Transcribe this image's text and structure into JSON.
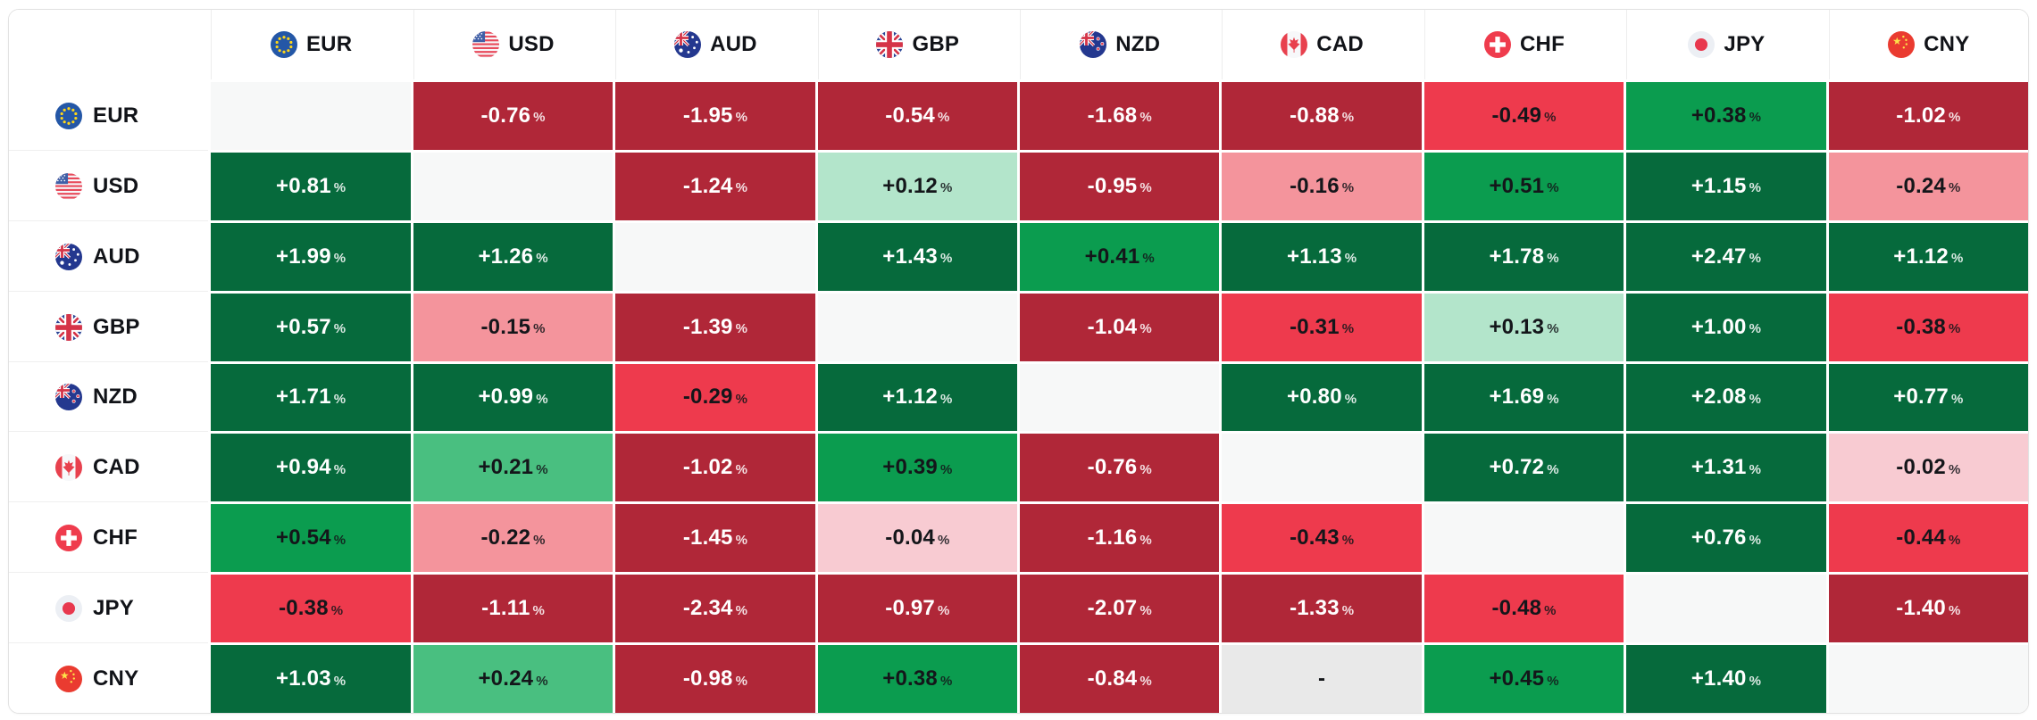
{
  "widget_title": "currency-strength-matrix",
  "table": {
    "unit": "%",
    "columns": [
      "EUR",
      "USD",
      "AUD",
      "GBP",
      "NZD",
      "CAD",
      "CHF",
      "JPY",
      "CNY"
    ],
    "rows": [
      {
        "currency": "EUR",
        "flag_icon": "eur-flag-icon",
        "values": [
          null,
          "-0.76",
          "-1.95",
          "-0.54",
          "-1.68",
          "-0.88",
          "-0.49",
          "+0.38",
          "-1.02"
        ]
      },
      {
        "currency": "USD",
        "flag_icon": "usd-flag-icon",
        "values": [
          "+0.81",
          null,
          "-1.24",
          "+0.12",
          "-0.95",
          "-0.16",
          "+0.51",
          "+1.15",
          "-0.24"
        ]
      },
      {
        "currency": "AUD",
        "flag_icon": "aud-flag-icon",
        "values": [
          "+1.99",
          "+1.26",
          null,
          "+1.43",
          "+0.41",
          "+1.13",
          "+1.78",
          "+2.47",
          "+1.12"
        ]
      },
      {
        "currency": "GBP",
        "flag_icon": "gbp-flag-icon",
        "values": [
          "+0.57",
          "-0.15",
          "-1.39",
          null,
          "-1.04",
          "-0.31",
          "+0.13",
          "+1.00",
          "-0.38"
        ]
      },
      {
        "currency": "NZD",
        "flag_icon": "nzd-flag-icon",
        "values": [
          "+1.71",
          "+0.99",
          "-0.29",
          "+1.12",
          null,
          "+0.80",
          "+1.69",
          "+2.08",
          "+0.77"
        ]
      },
      {
        "currency": "CAD",
        "flag_icon": "cad-flag-icon",
        "values": [
          "+0.94",
          "+0.21",
          "-1.02",
          "+0.39",
          "-0.76",
          null,
          "+0.72",
          "+1.31",
          "-0.02"
        ]
      },
      {
        "currency": "CHF",
        "flag_icon": "chf-flag-icon",
        "values": [
          "+0.54",
          "-0.22",
          "-1.45",
          "-0.04",
          "-1.16",
          "-0.43",
          null,
          "+0.76",
          "-0.44"
        ]
      },
      {
        "currency": "JPY",
        "flag_icon": "jpy-flag-icon",
        "values": [
          "-0.38",
          "-1.11",
          "-2.34",
          "-0.97",
          "-2.07",
          "-1.33",
          "-0.48",
          null,
          "-1.40"
        ]
      },
      {
        "currency": "CNY",
        "flag_icon": "cny-flag-icon",
        "values": [
          "+1.03",
          "+0.24",
          "-0.98",
          "+0.38",
          "-0.84",
          "-",
          "+0.45",
          "+1.40",
          null
        ]
      }
    ]
  },
  "colors": {
    "scale": [
      {
        "min": 0.55,
        "bg": "#066a3c",
        "text": "#ffffff"
      },
      {
        "min": 0.35,
        "bg": "#0b9c4f",
        "text": "#14161a"
      },
      {
        "min": 0.15,
        "bg": "#49bf80",
        "text": "#14161a"
      },
      {
        "min": 0.03,
        "bg": "#b3e5cb",
        "text": "#14161a"
      },
      {
        "min": -0.1,
        "bg": "#f8cbd2",
        "text": "#14161a"
      },
      {
        "min": -0.25,
        "bg": "#f4949c",
        "text": "#14161a"
      },
      {
        "min": -0.5,
        "bg": "#ee3a4d",
        "text": "#14161a"
      },
      {
        "min": -999,
        "bg": "#b02738",
        "text": "#ffffff"
      }
    ],
    "diagonal_bg": "#f7f8f8",
    "no_data_bg": "#e9e9e9",
    "no_data_text": "#14161a",
    "header_text": "#111318",
    "grid_line": "#ffffff",
    "outer_border": "#e2e2e2"
  }
}
